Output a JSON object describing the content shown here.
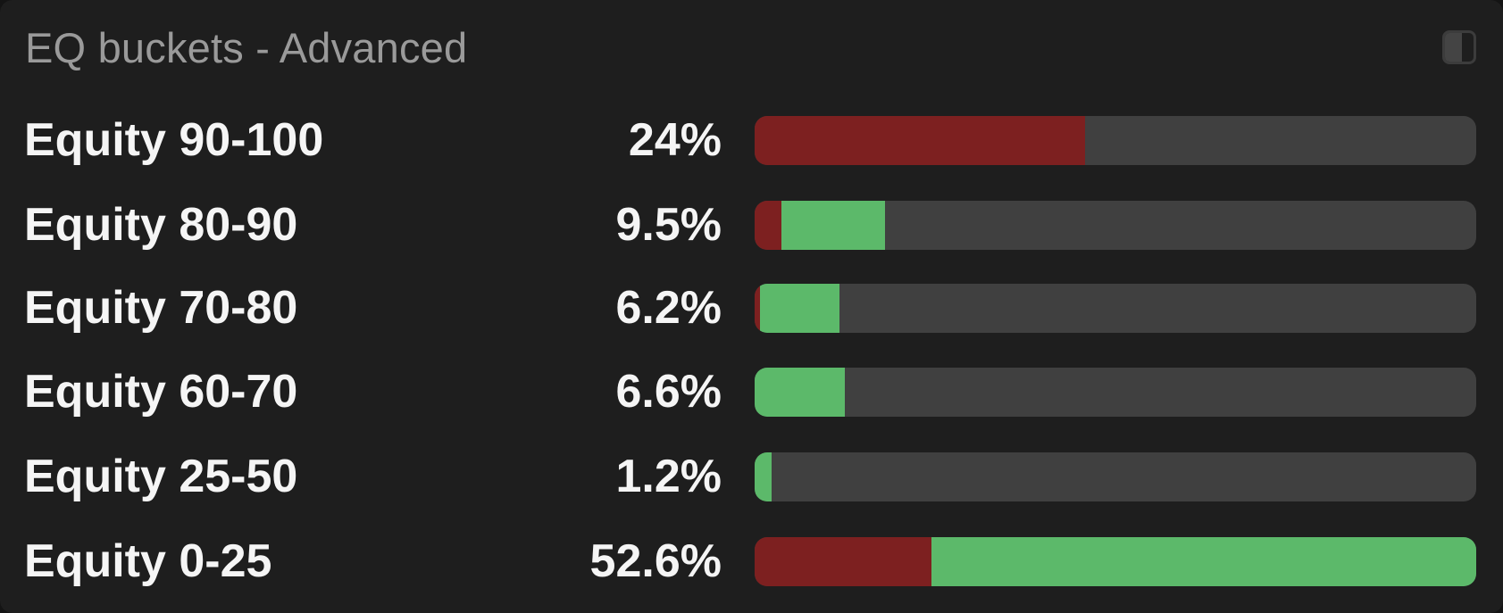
{
  "panel": {
    "title": "EQ buckets - Advanced",
    "toggle_icon": "sidebar-toggle-icon"
  },
  "colors": {
    "background": "#1e1e1e",
    "track": "#404040",
    "negative": "#7d2020",
    "positive": "#5cb96a",
    "title_text": "#9a9a9a",
    "label_text": "#f5f5f5"
  },
  "rows": [
    {
      "label": "Equity 90-100",
      "pct": "24%",
      "red": 45.8,
      "green": 0.0
    },
    {
      "label": "Equity 80-90",
      "pct": "9.5%",
      "red": 3.7,
      "green": 14.4
    },
    {
      "label": "Equity 70-80",
      "pct": "6.2%",
      "red": 0.8,
      "green": 11.0
    },
    {
      "label": "Equity 60-70",
      "pct": "6.6%",
      "red": 0.0,
      "green": 12.5
    },
    {
      "label": "Equity 25-50",
      "pct": "1.2%",
      "red": 0.0,
      "green": 2.3
    },
    {
      "label": "Equity 0-25",
      "pct": "52.6%",
      "red": 24.5,
      "green": 75.5
    }
  ],
  "chart_data": {
    "type": "bar",
    "title": "EQ buckets - Advanced",
    "orientation": "horizontal-stacked",
    "categories": [
      "Equity 90-100",
      "Equity 80-90",
      "Equity 70-80",
      "Equity 60-70",
      "Equity 25-50",
      "Equity 0-25"
    ],
    "values": [
      24,
      9.5,
      6.2,
      6.6,
      1.2,
      52.6
    ],
    "value_labels": [
      "24%",
      "9.5%",
      "6.2%",
      "6.6%",
      "1.2%",
      "52.6%"
    ],
    "series": [
      {
        "name": "red (bar % of max width)",
        "values": [
          45.8,
          3.7,
          0.8,
          0.0,
          0.0,
          24.5
        ]
      },
      {
        "name": "green (bar % of max width)",
        "values": [
          0.0,
          14.4,
          11.0,
          12.5,
          2.3,
          75.5
        ]
      }
    ],
    "scale_note": "bars are scaled relative to the largest bucket (52.6% = full width)",
    "xlabel": "",
    "ylabel": "",
    "grid": false,
    "legend": "none"
  }
}
